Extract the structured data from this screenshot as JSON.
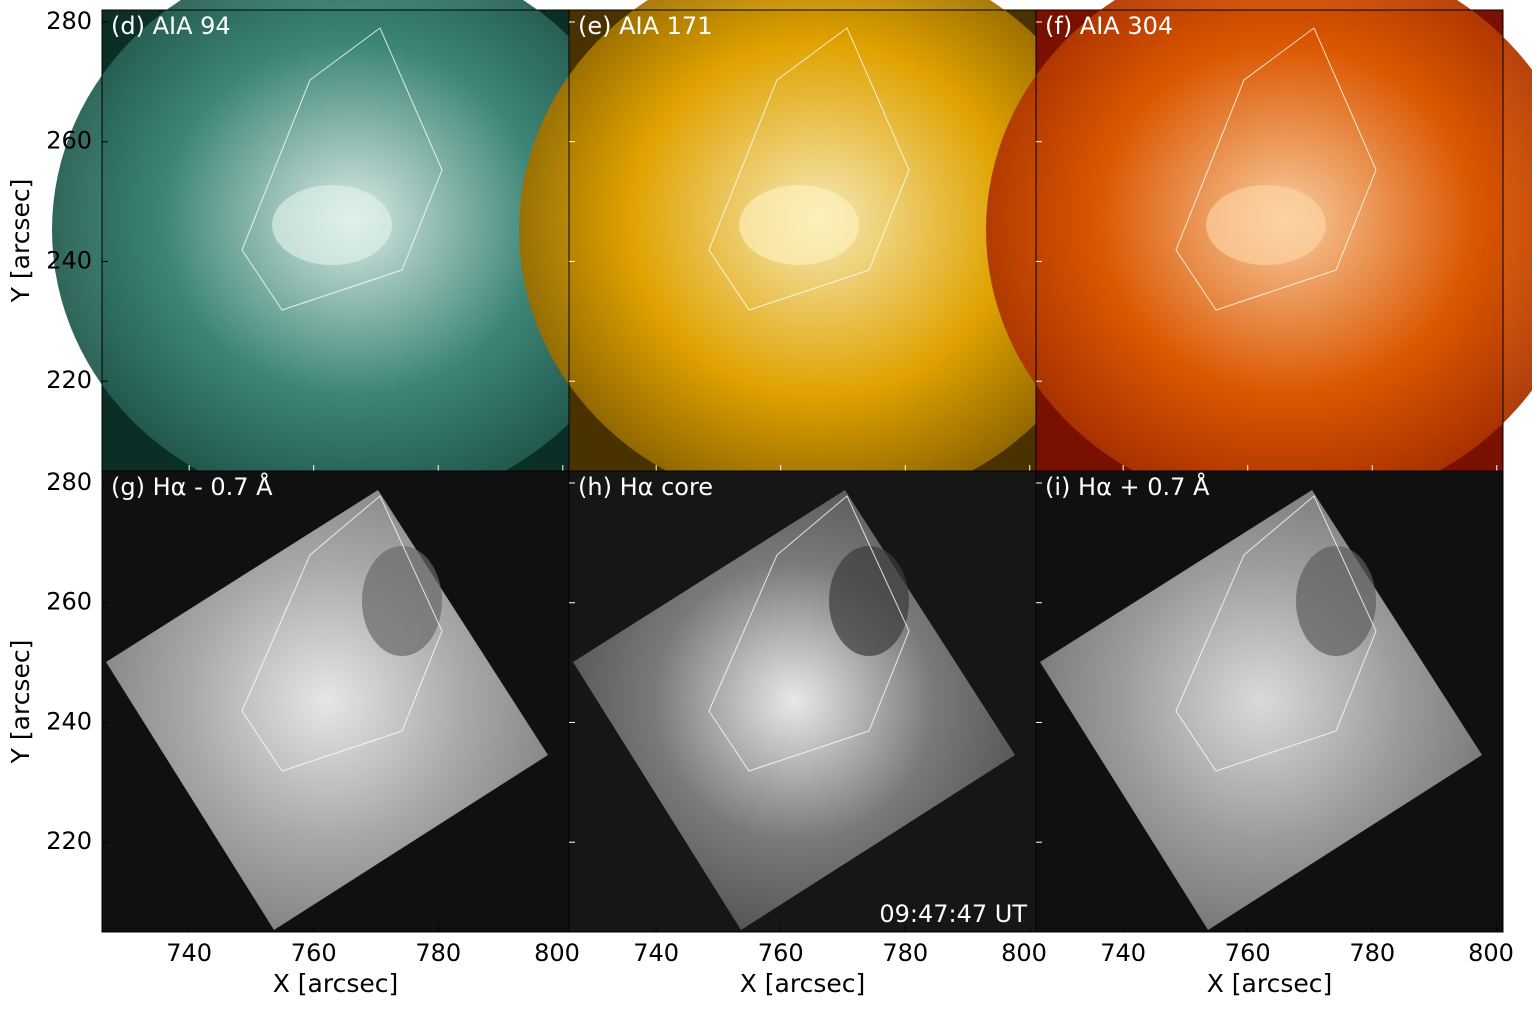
{
  "chart_data": {
    "type": "image",
    "panels": [
      {
        "title": "(d) AIA 94",
        "colors": [
          "#0b2f27",
          "#3f8a7a",
          "#e4f4ef"
        ]
      },
      {
        "title": "(e) AIA 171",
        "colors": [
          "#4a3200",
          "#e8a800",
          "#fff3c0"
        ]
      },
      {
        "title": "(f) AIA 304",
        "colors": [
          "#7a1000",
          "#e05a00",
          "#ffd7a8"
        ]
      },
      {
        "title": "(g) Hα - 0.7 Å",
        "colors": [
          "#6a6a6a",
          "#a8a8a8",
          "#e6e6e6"
        ]
      },
      {
        "title": "(h) Hα core",
        "colors": [
          "#3a3a3a",
          "#7a7a7a",
          "#e8e8e8"
        ]
      },
      {
        "title": "(i) Hα + 0.7 Å",
        "colors": [
          "#5e5e5e",
          "#9c9c9c",
          "#dadada"
        ]
      }
    ],
    "annotation": "09:47:47 UT",
    "xlabel": "X [arcsec]",
    "ylabel": "Y [arcsec]",
    "xlim": [
      726,
      801
    ],
    "ylim": [
      205,
      282
    ],
    "xticks": [
      740,
      760,
      780,
      800
    ],
    "yticks": [
      220,
      240,
      260,
      280
    ]
  }
}
